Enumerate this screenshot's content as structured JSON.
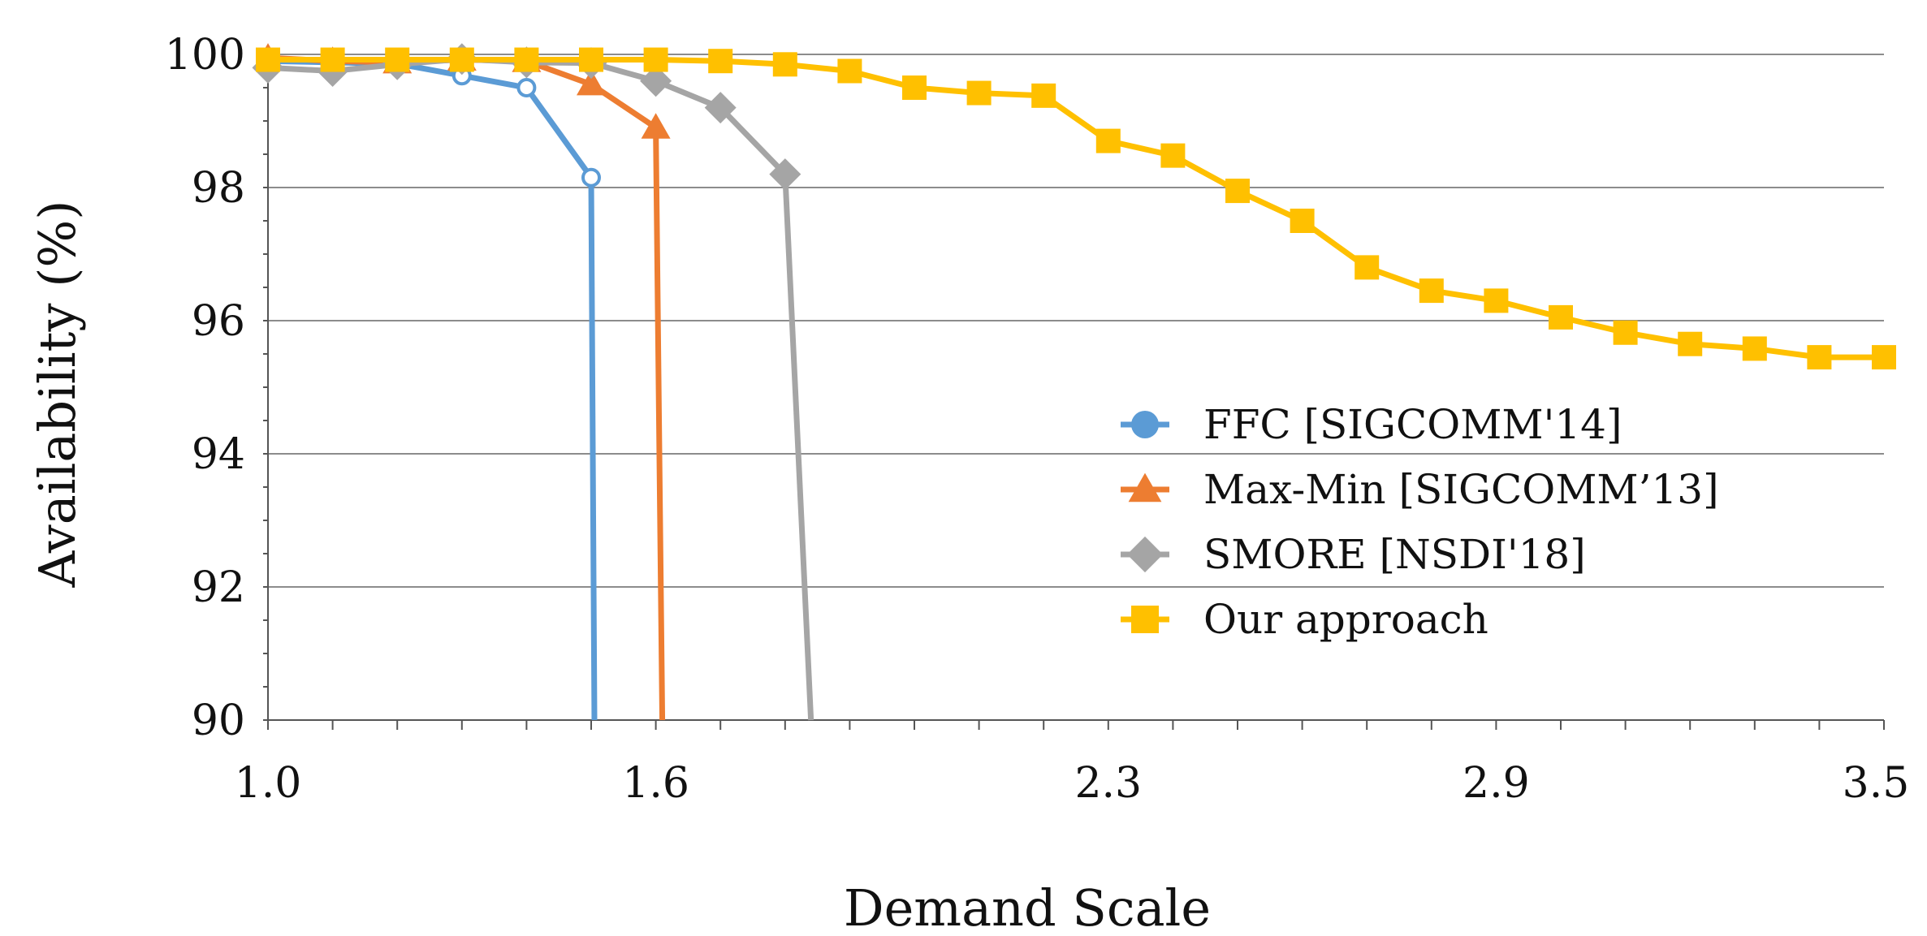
{
  "chart_data": {
    "type": "line",
    "title": "",
    "xlabel": "Demand Scale",
    "ylabel": "Availability (%)",
    "xlim": [
      1.0,
      3.5
    ],
    "ylim": [
      90,
      100
    ],
    "x_ticks": [
      "1.0",
      "1.6",
      "2.3",
      "2.9",
      "3.5"
    ],
    "y_ticks": [
      "90",
      "92",
      "94",
      "96",
      "98",
      "100"
    ],
    "grid": "horizontal",
    "legend_position": "center-right",
    "series": [
      {
        "name": "FFC [SIGCOMM'14]",
        "color": "#5b9bd5",
        "marker": "circle-open",
        "x": [
          1.0,
          1.1,
          1.2,
          1.3,
          1.4,
          1.5,
          1.505
        ],
        "y": [
          99.9,
          99.88,
          99.86,
          99.68,
          99.5,
          98.15,
          90.0
        ]
      },
      {
        "name": "Max-Min [SIGCOMM’13]",
        "color": "#ed7d31",
        "marker": "triangle",
        "x": [
          1.0,
          1.1,
          1.2,
          1.3,
          1.4,
          1.5,
          1.6,
          1.61
        ],
        "y": [
          99.95,
          99.9,
          99.88,
          99.92,
          99.9,
          99.55,
          98.9,
          90.0
        ]
      },
      {
        "name": "SMORE [NSDI'18]",
        "color": "#a5a5a5",
        "marker": "diamond",
        "x": [
          1.0,
          1.1,
          1.2,
          1.3,
          1.4,
          1.5,
          1.6,
          1.7,
          1.8,
          1.84
        ],
        "y": [
          99.8,
          99.75,
          99.85,
          99.93,
          99.88,
          99.87,
          99.6,
          99.2,
          98.2,
          90.0
        ]
      },
      {
        "name": "Our approach",
        "color": "#ffc000",
        "marker": "square",
        "x": [
          1.0,
          1.1,
          1.2,
          1.3,
          1.4,
          1.5,
          1.6,
          1.7,
          1.8,
          1.9,
          2.0,
          2.1,
          2.2,
          2.3,
          2.4,
          2.5,
          2.6,
          2.7,
          2.8,
          2.9,
          3.0,
          3.1,
          3.2,
          3.3,
          3.4,
          3.5
        ],
        "y": [
          99.92,
          99.92,
          99.92,
          99.92,
          99.92,
          99.92,
          99.92,
          99.9,
          99.85,
          99.75,
          99.5,
          99.42,
          99.38,
          98.7,
          98.48,
          97.95,
          97.5,
          96.8,
          96.45,
          96.3,
          96.05,
          95.82,
          95.65,
          95.58,
          95.45,
          95.45
        ]
      }
    ]
  }
}
